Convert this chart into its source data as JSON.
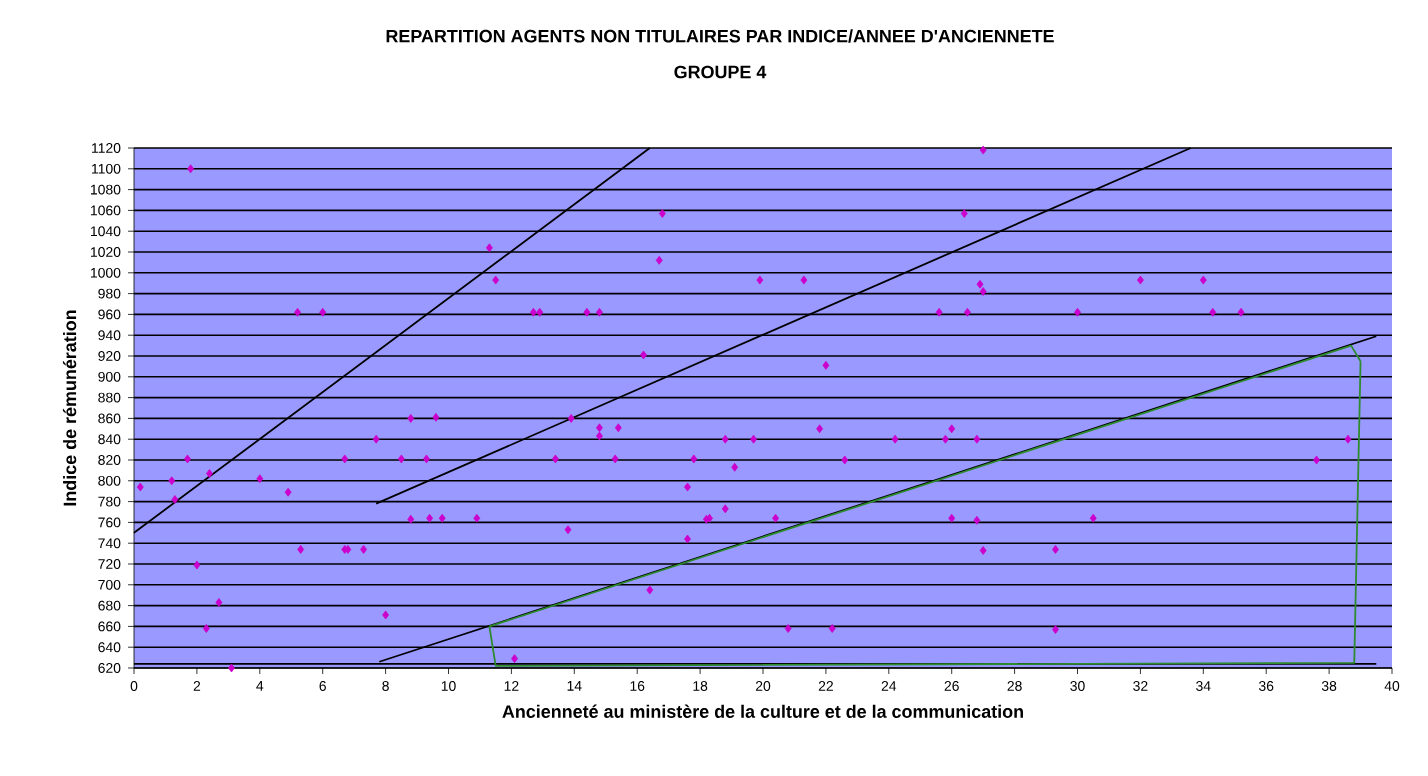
{
  "chart_data": {
    "type": "scatter",
    "title": "REPARTITION AGENTS NON TITULAIRES PAR INDICE/ANNEE D'ANCIENNETE",
    "subtitle": "GROUPE 4",
    "xlabel": "Ancienneté au ministère de la culture et de la communication",
    "ylabel": "Indice de rémunération",
    "xlim": [
      0,
      40
    ],
    "xticks": [
      0,
      2,
      4,
      6,
      8,
      10,
      12,
      14,
      16,
      18,
      20,
      22,
      24,
      26,
      28,
      30,
      32,
      34,
      36,
      38,
      40
    ],
    "ylim": [
      620,
      1120
    ],
    "yticks": [
      620,
      640,
      660,
      680,
      700,
      720,
      740,
      760,
      780,
      800,
      820,
      840,
      860,
      880,
      900,
      920,
      940,
      960,
      980,
      1000,
      1020,
      1040,
      1060,
      1080,
      1100,
      1120
    ],
    "grid": "y",
    "marker": "diamond",
    "series": [
      {
        "color": "#cc00cc",
        "x": [
          1.8,
          5.2,
          6.0,
          0.2,
          1.2,
          1.3,
          1.7,
          2.4,
          4.0,
          4.9,
          5.3,
          6.7,
          6.8,
          7.3,
          6.7,
          7.7,
          8.5,
          8.8,
          9.3,
          9.6,
          8.8,
          9.4,
          9.8,
          10.9,
          2.0,
          2.7,
          2.3,
          3.1,
          8.0,
          11.3,
          11.5,
          12.7,
          12.9,
          14.4,
          14.8,
          16.8,
          16.7,
          19.9,
          21.3,
          16.2,
          22.0,
          13.9,
          14.8,
          14.8,
          15.4,
          13.4,
          15.3,
          17.8,
          18.8,
          19.7,
          19.1,
          21.8,
          24.2,
          22.6,
          17.6,
          18.8,
          18.2,
          18.3,
          20.4,
          13.8,
          17.6,
          16.4,
          20.8,
          22.2,
          12.1,
          27.0,
          26.4,
          26.9,
          27.0,
          32.0,
          34.0,
          25.6,
          26.5,
          30.0,
          34.3,
          35.2,
          26.0,
          25.8,
          26.8,
          38.6,
          37.6,
          26.0,
          26.8,
          30.5,
          27.0,
          29.3,
          29.3
        ],
        "values": [
          1100,
          962,
          962,
          794,
          800,
          782,
          821,
          807,
          802,
          789,
          734,
          734,
          734,
          734,
          821,
          840,
          821,
          860,
          821,
          861,
          763,
          764,
          764,
          764,
          719,
          683,
          658,
          620,
          671,
          1024,
          993,
          962,
          962,
          962,
          962,
          1057,
          1012,
          993,
          993,
          921,
          911,
          860,
          851,
          843,
          851,
          821,
          821,
          821,
          840,
          840,
          813,
          850,
          840,
          820,
          794,
          773,
          763,
          764,
          764,
          753,
          744,
          695,
          658,
          658,
          629,
          1118,
          1057,
          989,
          982,
          993,
          993,
          962,
          962,
          962,
          962,
          962,
          850,
          840,
          840,
          840,
          820,
          764,
          762,
          764,
          733,
          734,
          657
        ]
      },
      {
        "type": "line",
        "marker": "none",
        "color": "#000000",
        "x": [
          0,
          16.4
        ],
        "values": [
          750,
          1120
        ]
      },
      {
        "type": "line",
        "marker": "none",
        "color": "#000000",
        "x": [
          7.7,
          33.6
        ],
        "values": [
          778,
          1120
        ]
      },
      {
        "type": "line",
        "marker": "none",
        "color": "#000000",
        "x": [
          7.8,
          39.5
        ],
        "values": [
          626,
          939
        ]
      },
      {
        "type": "line",
        "marker": "none",
        "color": "#000000",
        "x": [
          0,
          39.5
        ],
        "values": [
          624,
          624
        ]
      },
      {
        "type": "line",
        "marker": "none",
        "color": "#2e8b2e",
        "x": [
          11.3,
          38.7,
          39.0
        ],
        "values": [
          660,
          930,
          915
        ]
      },
      {
        "type": "line",
        "marker": "none",
        "color": "#2e8b2e",
        "x": [
          11.3,
          11.5,
          38.8,
          39.0
        ],
        "values": [
          660,
          622,
          625,
          915
        ]
      }
    ]
  }
}
